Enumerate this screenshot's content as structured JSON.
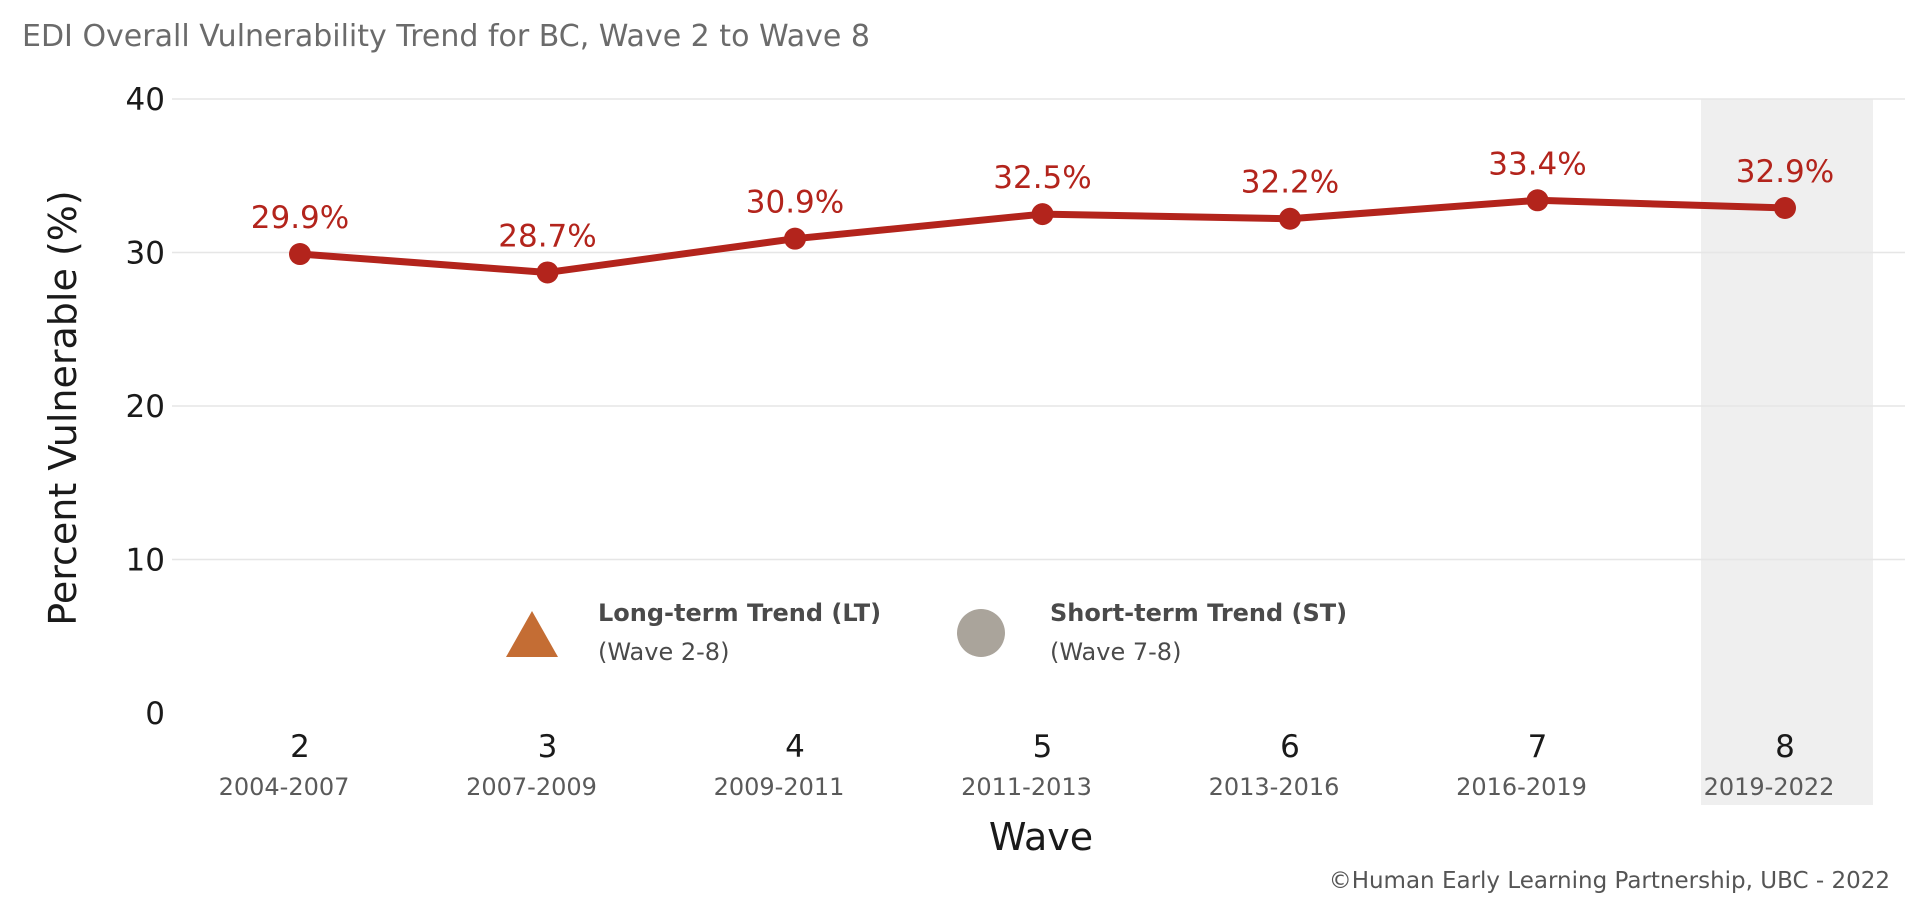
{
  "title": "EDI Overall Vulnerability Trend for BC, Wave 2 to Wave 8",
  "caption": "©Human Early Learning Partnership, UBC - 2022",
  "colors": {
    "line": "#b3241c",
    "highlight_band": "#efefef",
    "lt_marker": "#c46d34",
    "st_marker": "#aaa49b"
  },
  "legend": {
    "items": [
      {
        "icon": "triangle-icon",
        "title": "Long-term Trend (LT)",
        "subtitle": "(Wave 2-8)"
      },
      {
        "icon": "circle-icon",
        "title": "Short-term Trend (ST)",
        "subtitle": "(Wave 7-8)"
      }
    ]
  },
  "chart_data": {
    "type": "line",
    "title": "EDI Overall Vulnerability Trend for BC, Wave 2 to Wave 8",
    "xlabel": "Wave",
    "ylabel": "Percent Vulnerable (%)",
    "ylim": [
      0,
      40
    ],
    "yticks": [
      0,
      10,
      20,
      30,
      40
    ],
    "grid": true,
    "highlight_category": "8",
    "categories": [
      "2",
      "3",
      "4",
      "5",
      "6",
      "7",
      "8"
    ],
    "category_sublabels": [
      "2004-2007",
      "2007-2009",
      "2009-2011",
      "2011-2013",
      "2013-2016",
      "2016-2019",
      "2019-2022"
    ],
    "series": [
      {
        "values": [
          29.9,
          28.7,
          30.9,
          32.5,
          32.2,
          33.4,
          32.9
        ],
        "labels": [
          "29.9%",
          "28.7%",
          "30.9%",
          "32.5%",
          "32.2%",
          "33.4%",
          "32.9%"
        ]
      }
    ]
  }
}
